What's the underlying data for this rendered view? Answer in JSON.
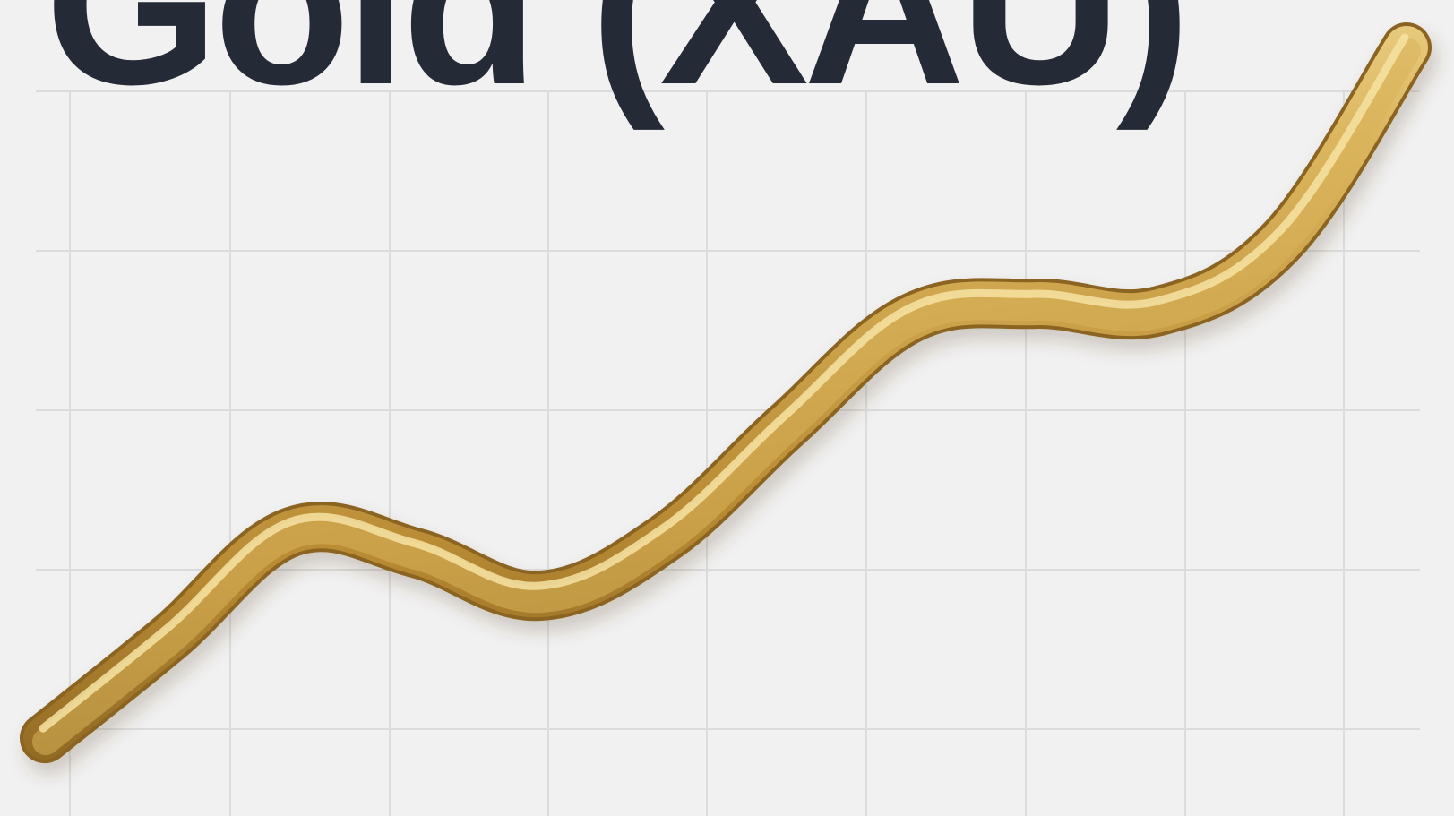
{
  "chart_data": {
    "type": "line",
    "title": "Gold (XAU)",
    "xlabel": "",
    "ylabel": "",
    "grid": true,
    "legend": "none",
    "ylim": [
      0,
      100
    ],
    "series": [
      {
        "x": [
          0,
          1,
          2,
          3,
          4,
          5,
          6,
          7,
          8,
          9,
          10,
          11
        ],
        "values": [
          2,
          16,
          31,
          28,
          22,
          30,
          46,
          61,
          63,
          62,
          72,
          99
        ]
      }
    ]
  },
  "colors": {
    "background": "#f1f1f1",
    "grid": "#dcdcdc",
    "title": "#252b36",
    "line_light": "#f6e3a3",
    "line_mid": "#d9b35a",
    "line_dark": "#8a6420"
  }
}
